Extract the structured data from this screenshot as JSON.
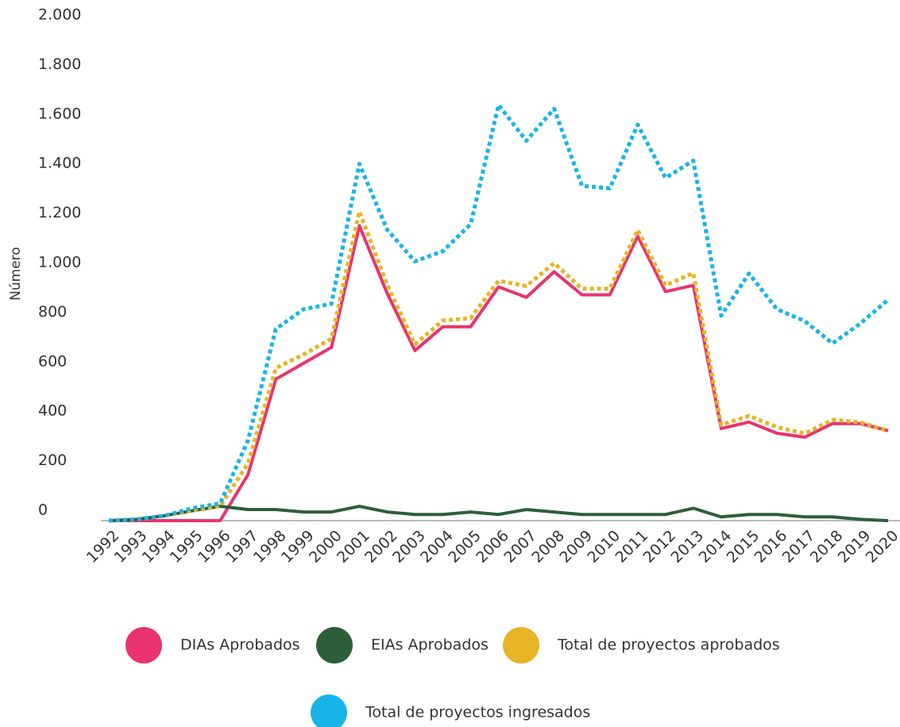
{
  "chart_data": {
    "type": "line",
    "y_label": "Número",
    "categories": [
      "1992",
      "1993",
      "1994",
      "1995",
      "1996",
      "1997",
      "1998",
      "1999",
      "2000",
      "2001",
      "2002",
      "2003",
      "2004",
      "2005",
      "2006",
      "2007",
      "2008",
      "2009",
      "2010",
      "2011",
      "2012",
      "2013",
      "2014",
      "2015",
      "2016",
      "2017",
      "2018",
      "2019",
      "2020"
    ],
    "series": [
      {
        "name": "DIAs Aprobados",
        "color": "#e8336e",
        "style": "solid",
        "values": [
          0,
          0,
          0,
          0,
          0,
          186,
          571,
          636,
          700,
          1191,
          918,
          687,
          783,
          783,
          944,
          902,
          1005,
          912,
          912,
          1149,
          925,
          950,
          372,
          398,
          353,
          337,
          392,
          392,
          363
        ]
      },
      {
        "name": "EIAs Aprobados",
        "color": "#2d5e3a",
        "style": "solid",
        "values": [
          0,
          5,
          20,
          40,
          58,
          45,
          45,
          35,
          35,
          58,
          35,
          25,
          25,
          35,
          25,
          45,
          35,
          25,
          25,
          25,
          25,
          50,
          15,
          25,
          25,
          15,
          15,
          5,
          0
        ]
      },
      {
        "name": "Total de proyectos aprobados",
        "color": "#e8b325",
        "style": "dotted",
        "values": [
          0,
          5,
          20,
          40,
          58,
          231,
          616,
          671,
          735,
          1249,
          953,
          712,
          808,
          818,
          969,
          947,
          1040,
          937,
          937,
          1174,
          950,
          1000,
          387,
          423,
          378,
          352,
          407,
          397,
          363
        ]
      },
      {
        "name": "Total de proyectos ingresados",
        "color": "#17b4e8",
        "style": "dotted",
        "values": [
          0,
          5,
          20,
          50,
          70,
          324,
          774,
          854,
          876,
          1441,
          1175,
          1047,
          1088,
          1197,
          1679,
          1534,
          1663,
          1352,
          1342,
          1599,
          1384,
          1454,
          828,
          998,
          854,
          806,
          716,
          796,
          892
        ]
      }
    ],
    "ylim": [
      0,
      2000
    ],
    "yticks": [
      0,
      200,
      400,
      600,
      800,
      {
        "value": 1000,
        "label": "1.000"
      },
      {
        "value": 1200,
        "label": "1.200"
      },
      {
        "value": 1400,
        "label": "1.400"
      },
      {
        "value": 1600,
        "label": "1.600"
      },
      {
        "value": 1800,
        "label": "1.800"
      },
      {
        "value": 2000,
        "label": "2.000"
      }
    ],
    "grid": false
  }
}
